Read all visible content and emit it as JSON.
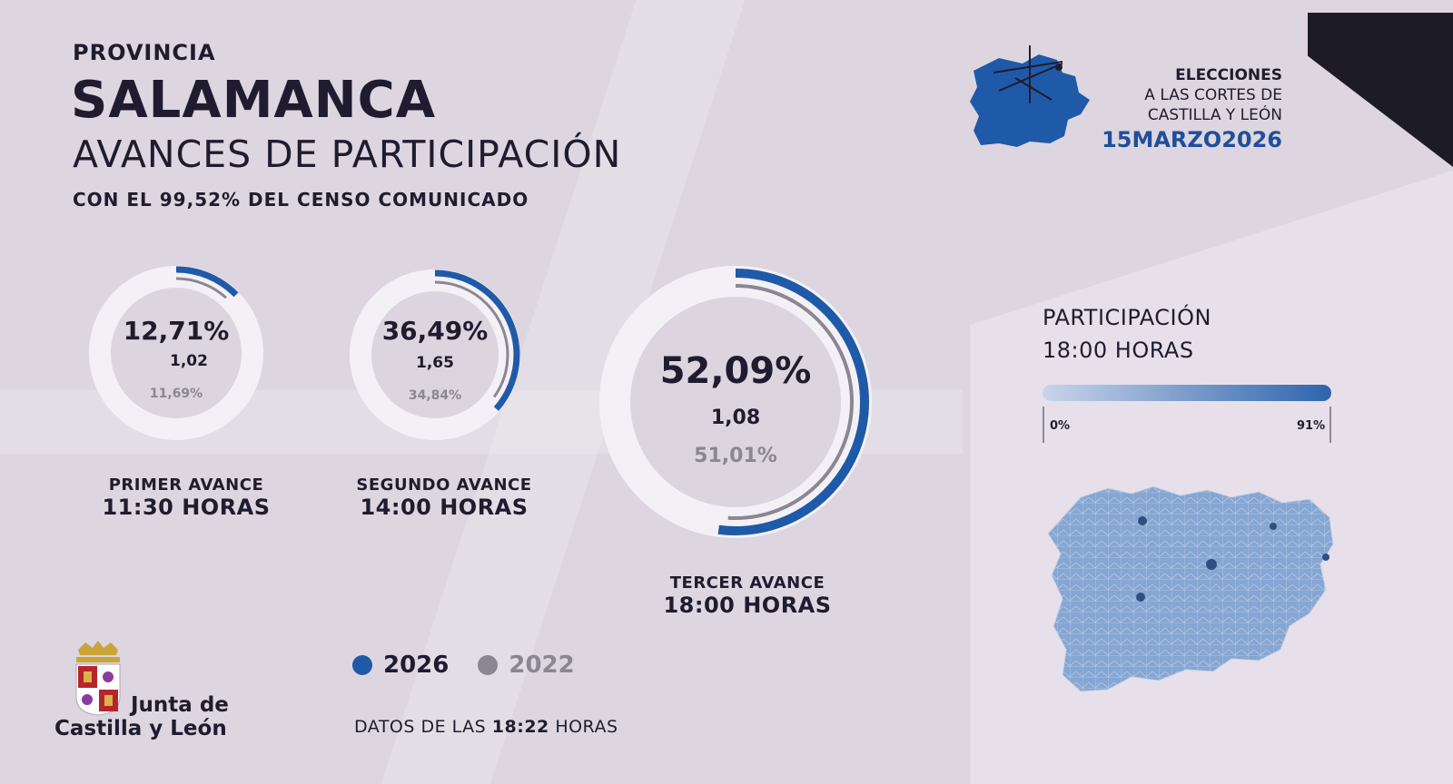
{
  "header": {
    "province_label": "PROVINCIA",
    "province_name": "SALAMANCA",
    "subtitle": "AVANCES DE PARTICIPACIÓN",
    "census_prefix": "CON EL",
    "census_value": "99,52%",
    "census_suffix": "DEL CENSO COMUNICADO"
  },
  "election_logo": {
    "line1": "ELECCIONES",
    "line2": "A LAS CORTES DE",
    "line3": "CASTILLA Y LEÓN",
    "date": "15MARZO2026"
  },
  "rings": [
    {
      "pct_2026": "12,71%",
      "ratio": "1,02",
      "pct_2022": "11,69%",
      "fill_2026": 0.1271,
      "fill_2022": 0.1169,
      "caption_line1": "PRIMER AVANCE",
      "caption_line2": "11:30 HORAS"
    },
    {
      "pct_2026": "36,49%",
      "ratio": "1,65",
      "pct_2022": "34,84%",
      "fill_2026": 0.3649,
      "fill_2022": 0.3484,
      "caption_line1": "SEGUNDO AVANCE",
      "caption_line2": "14:00 HORAS"
    },
    {
      "pct_2026": "52,09%",
      "ratio": "1,08",
      "pct_2022": "51,01%",
      "fill_2026": 0.5209,
      "fill_2022": 0.5101,
      "caption_line1": "TERCER AVANCE",
      "caption_line2": "18:00 HORAS"
    }
  ],
  "legend": {
    "current": "2026",
    "previous": "2022",
    "current_color": "#1f5aa8",
    "previous_color": "#8a8792"
  },
  "data_time": {
    "prefix": "DATOS DE LAS",
    "time": "18:22",
    "suffix": "HORAS"
  },
  "institution": {
    "line1": "Junta de",
    "line2": "Castilla y León"
  },
  "participation_map": {
    "title": "PARTICIPACIÓN",
    "hour": "18:00 HORAS",
    "scale_min": "0%",
    "scale_max": "91%"
  }
}
